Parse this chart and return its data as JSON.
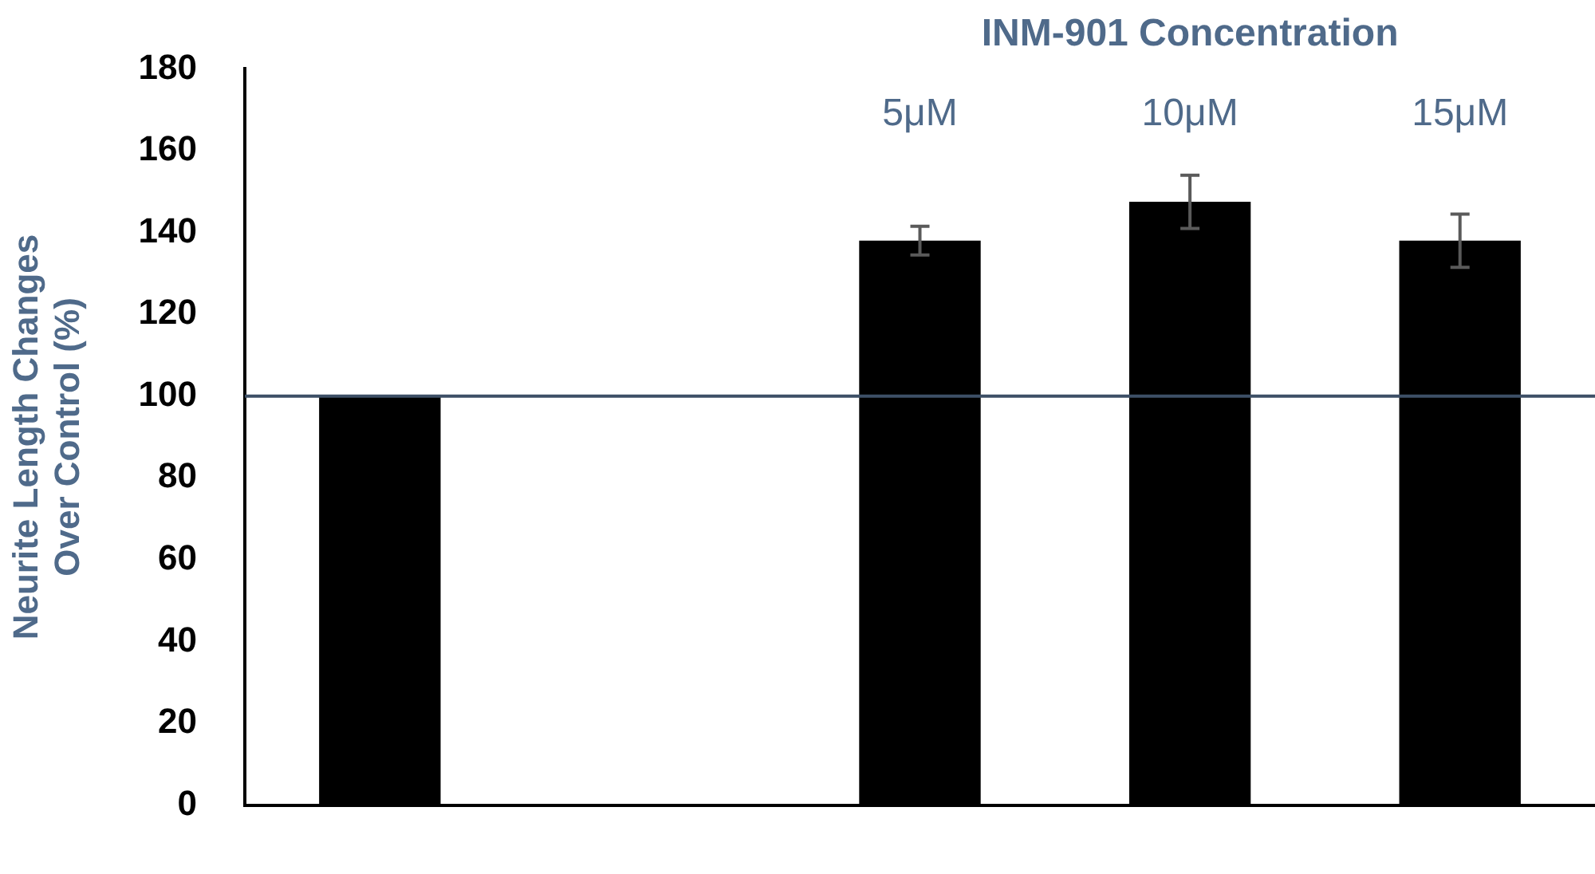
{
  "chart_data": {
    "type": "bar",
    "xlabel": "INM-901 Concentration",
    "ylabel": "Neurite Length Changes\nOver Control (%)",
    "categories": [
      null,
      null,
      "5μM",
      "10μM",
      "15μM"
    ],
    "values": [
      100,
      null,
      138,
      147.5,
      138
    ],
    "errors": [
      null,
      null,
      3.5,
      6.5,
      6.5
    ],
    "color": "#000000",
    "ylim": [
      0,
      180
    ],
    "yticks": [
      0,
      20,
      40,
      60,
      80,
      100,
      120,
      140,
      160,
      180
    ],
    "ref_lines": [
      {
        "axis": "y",
        "value": 100,
        "color": "#3d4f66"
      }
    ],
    "grid": false,
    "legend": false
  }
}
